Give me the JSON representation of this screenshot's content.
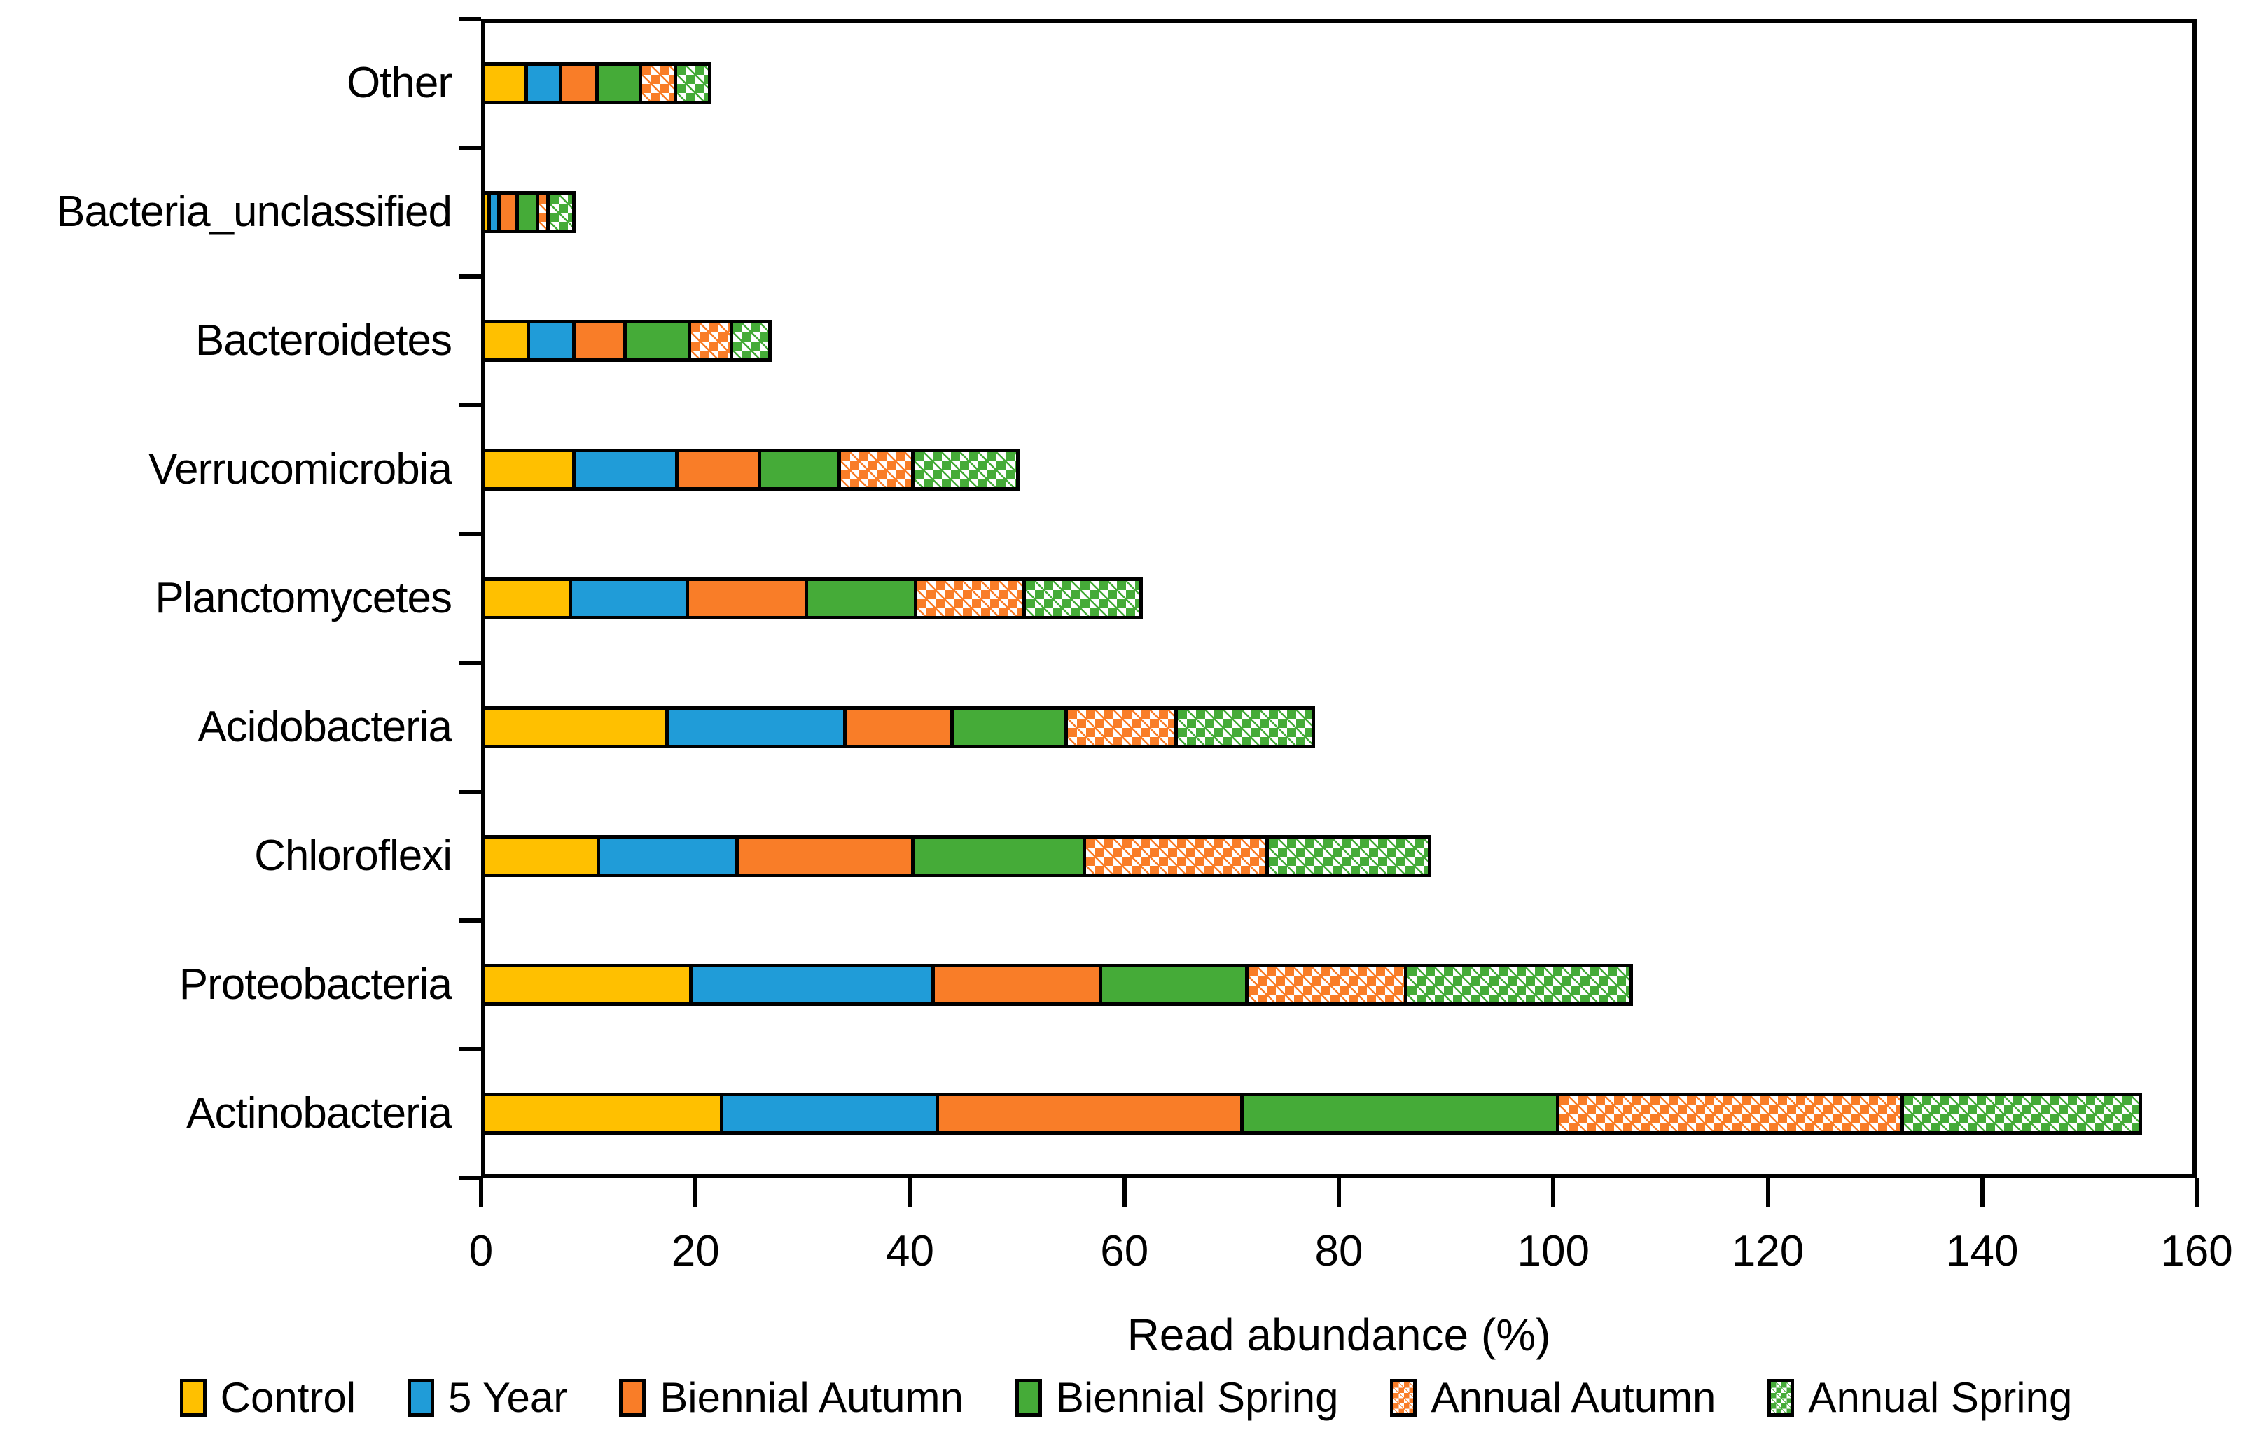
{
  "chart_data": {
    "type": "bar",
    "orientation": "horizontal",
    "stacked": true,
    "title": "",
    "xlabel": "Read abundance (%)",
    "ylabel": "",
    "xlim": [
      0,
      160
    ],
    "xticks": [
      0,
      20,
      40,
      60,
      80,
      100,
      120,
      140,
      160
    ],
    "grid": false,
    "legend_position": "bottom",
    "categories_top_to_bottom": [
      "Other",
      "Bacteria_unclassified",
      "Bacteroidetes",
      "Verrucomicrobia",
      "Planctomycetes",
      "Acidobacteria",
      "Chloroflexi",
      "Proteobacteria",
      "Actinobacteria"
    ],
    "series": [
      {
        "name": "Control",
        "color": "#FFC000",
        "pattern": "solid",
        "values": [
          4.4,
          0.9,
          4.6,
          8.8,
          8.5,
          17.5,
          11.1,
          19.7,
          22.6
        ]
      },
      {
        "name": "5 Year",
        "color": "#209CD8",
        "pattern": "solid",
        "values": [
          3.2,
          0.9,
          4.2,
          9.6,
          10.9,
          16.6,
          12.9,
          22.6,
          20.1
        ]
      },
      {
        "name": "Biennial Autumn",
        "color": "#F97D28",
        "pattern": "solid",
        "values": [
          3.4,
          1.7,
          4.8,
          7.7,
          11.1,
          10.0,
          16.4,
          15.6,
          28.4
        ]
      },
      {
        "name": "Biennial Spring",
        "color": "#45AB38",
        "pattern": "solid",
        "values": [
          4.0,
          1.9,
          6.0,
          7.5,
          10.2,
          10.6,
          16.0,
          13.7,
          29.5
        ]
      },
      {
        "name": "Annual Autumn",
        "color": "#F97D28",
        "pattern": "checker",
        "values": [
          3.3,
          1.0,
          3.9,
          6.8,
          10.1,
          10.3,
          17.1,
          14.8,
          32.1
        ]
      },
      {
        "name": "Annual Spring",
        "color": "#45AB38",
        "pattern": "checker",
        "values": [
          3.2,
          2.4,
          3.6,
          9.8,
          10.9,
          12.8,
          15.1,
          21.0,
          22.2
        ]
      }
    ],
    "totals": [
      21.5,
      8.8,
      27.1,
      50.2,
      61.7,
      77.8,
      88.6,
      107.4,
      154.9
    ]
  }
}
